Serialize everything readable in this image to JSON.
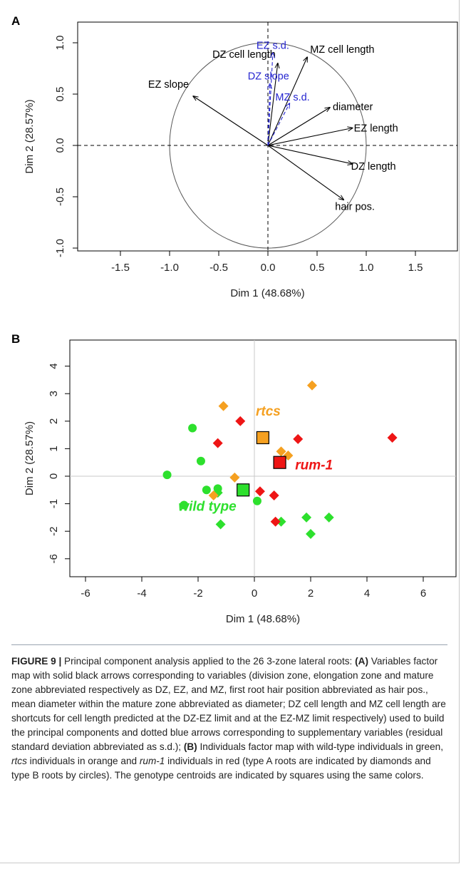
{
  "panel_a_label": "A",
  "panel_b_label": "B",
  "chart_data": [
    {
      "type": "scatter",
      "title": "",
      "xlabel": "Dim 1 (48.68%)",
      "ylabel": "Dim 2 (28.57%)",
      "xlim": [
        -1.9,
        1.9
      ],
      "ylim": [
        -1.05,
        1.05
      ],
      "x_ticks": [
        "-1.5",
        "-1.0",
        "-0.5",
        "0.0",
        "0.5",
        "1.0",
        "1.5"
      ],
      "y_ticks": [
        "-1.0",
        "-0.5",
        "0.0",
        "0.5",
        "1.0"
      ],
      "unit_circle": true,
      "active_variables": [
        {
          "label": "MZ cell length",
          "x": 0.4,
          "y": 0.86
        },
        {
          "label": "DZ cell length",
          "x": 0.1,
          "y": 0.8
        },
        {
          "label": "EZ slope",
          "x": -0.76,
          "y": 0.48
        },
        {
          "label": "diameter",
          "x": 0.63,
          "y": 0.37
        },
        {
          "label": "EZ length",
          "x": 0.86,
          "y": 0.17
        },
        {
          "label": "DZ length",
          "x": 0.86,
          "y": -0.18
        },
        {
          "label": "hair pos.",
          "x": 0.77,
          "y": -0.53
        }
      ],
      "supplementary_variables": [
        {
          "label": "EZ s.d.",
          "x": 0.05,
          "y": 0.9
        },
        {
          "label": "DZ slope",
          "x": 0.02,
          "y": 0.6
        },
        {
          "label": "MZ s.d.",
          "x": 0.22,
          "y": 0.41
        }
      ],
      "colors": {
        "active": "#000000",
        "supplementary": "#2525d0"
      }
    },
    {
      "type": "scatter",
      "title": "",
      "xlabel": "Dim 1 (48.68%)",
      "ylabel": "Dim 2 (28.57%)",
      "xlim": [
        -6.2,
        7.2
      ],
      "ylim": [
        -6.6,
        4.5
      ],
      "x_ticks": [
        "-6",
        "-4",
        "-2",
        "0",
        "2",
        "4",
        "6"
      ],
      "y_ticks": [
        "4",
        "3",
        "2",
        "1",
        "0",
        "-1",
        "-2",
        "-6"
      ],
      "note": "y-axis is broken: tick labelled -6 sits at position -3",
      "series": [
        {
          "name": "wild type",
          "color": "#2de02d",
          "points": [
            {
              "x": -2.2,
              "y": 1.75,
              "shape": "circle"
            },
            {
              "x": -1.9,
              "y": 0.55,
              "shape": "circle"
            },
            {
              "x": -3.1,
              "y": 0.05,
              "shape": "circle"
            },
            {
              "x": -1.7,
              "y": -0.5,
              "shape": "circle"
            },
            {
              "x": -1.3,
              "y": -0.45,
              "shape": "circle"
            },
            {
              "x": -2.5,
              "y": -1.05,
              "shape": "circle"
            },
            {
              "x": 0.1,
              "y": -0.9,
              "shape": "circle"
            },
            {
              "x": -1.3,
              "y": -0.6,
              "shape": "diamond"
            },
            {
              "x": -1.2,
              "y": -1.75,
              "shape": "diamond"
            },
            {
              "x": 0.95,
              "y": -1.65,
              "shape": "diamond"
            },
            {
              "x": 1.85,
              "y": -1.5,
              "shape": "diamond"
            },
            {
              "x": 2.0,
              "y": -2.1,
              "shape": "diamond"
            },
            {
              "x": 2.65,
              "y": -1.5,
              "shape": "diamond"
            }
          ],
          "centroid": {
            "x": -0.4,
            "y": -0.5
          }
        },
        {
          "name": "rtcs",
          "color": "#f5a020",
          "points": [
            {
              "x": 2.05,
              "y": 3.3,
              "shape": "diamond"
            },
            {
              "x": -1.1,
              "y": 2.55,
              "shape": "diamond"
            },
            {
              "x": 0.95,
              "y": 0.9,
              "shape": "diamond"
            },
            {
              "x": 1.2,
              "y": 0.75,
              "shape": "diamond"
            },
            {
              "x": -0.7,
              "y": -0.05,
              "shape": "diamond"
            },
            {
              "x": -1.45,
              "y": -0.7,
              "shape": "diamond"
            }
          ],
          "centroid": {
            "x": 0.3,
            "y": 1.4
          }
        },
        {
          "name": "rum-1",
          "color": "#ee1515",
          "points": [
            {
              "x": -0.5,
              "y": 2.0,
              "shape": "diamond"
            },
            {
              "x": 1.55,
              "y": 1.35,
              "shape": "diamond"
            },
            {
              "x": 4.9,
              "y": 1.4,
              "shape": "diamond"
            },
            {
              "x": -1.3,
              "y": 1.2,
              "shape": "diamond"
            },
            {
              "x": 0.2,
              "y": -0.55,
              "shape": "diamond"
            },
            {
              "x": 0.7,
              "y": -0.7,
              "shape": "diamond"
            },
            {
              "x": 0.75,
              "y": -1.65,
              "shape": "diamond"
            }
          ],
          "centroid": {
            "x": 0.9,
            "y": 0.5
          }
        }
      ],
      "labels": [
        {
          "text": "rtcs",
          "color": "#f5a020"
        },
        {
          "text": "rum-1",
          "color": "#ee1515"
        },
        {
          "text": "wild type",
          "color": "#2de02d"
        }
      ]
    }
  ],
  "caption": {
    "figure_label": "FIGURE 9 |",
    "segments": [
      {
        "t": " Principal component analysis applied to the 26 3-zone lateral roots: ",
        "s": ""
      },
      {
        "t": "(A)",
        "s": "b"
      },
      {
        "t": " Variables factor map with solid black arrows corresponding to variables (division zone, elongation zone and mature zone abbreviated respectively as DZ, EZ, and MZ, first root hair position abbreviated as hair pos., mean diameter within the mature zone abbreviated as diameter; DZ cell length and MZ cell length are shortcuts for cell length predicted at the DZ-EZ limit and at the EZ-MZ limit respectively) used to build the principal components and dotted blue arrows corresponding to supplementary variables (residual standard deviation abbreviated as s.d.); ",
        "s": ""
      },
      {
        "t": "(B)",
        "s": "b"
      },
      {
        "t": " Individuals factor map with wild-type individuals in green, ",
        "s": ""
      },
      {
        "t": "rtcs",
        "s": "i"
      },
      {
        "t": " individuals in orange and ",
        "s": ""
      },
      {
        "t": "rum-1",
        "s": "i"
      },
      {
        "t": " individuals in red (type A roots are indicated by diamonds and type B roots by circles). The genotype centroids are indicated by squares using the same colors.",
        "s": ""
      }
    ]
  }
}
